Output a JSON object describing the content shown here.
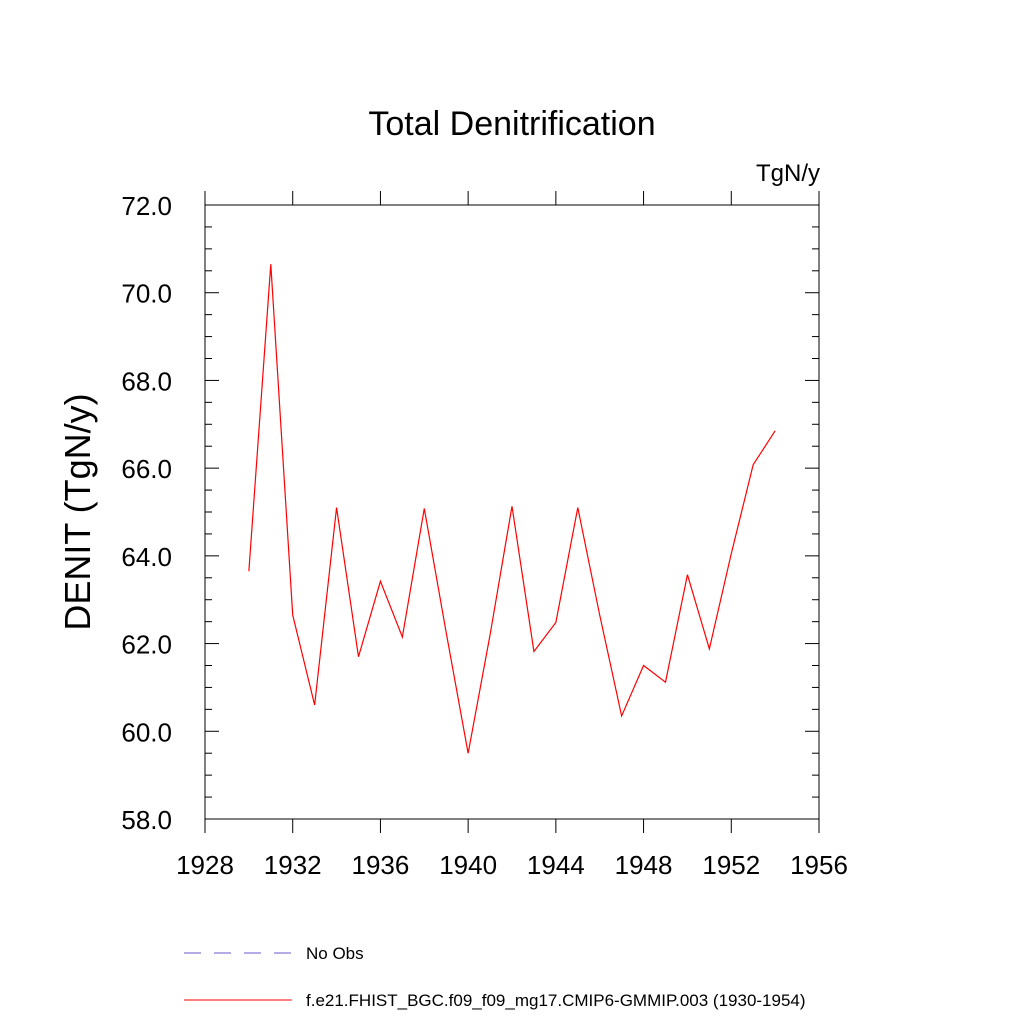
{
  "chart_data": {
    "type": "line",
    "title": "Total Denitrification",
    "units_label": "TgN/y",
    "ylabel": "DENIT  (TgN/y)",
    "xlabel": "",
    "xlim": [
      1928,
      1956
    ],
    "ylim": [
      58.0,
      72.0
    ],
    "x_ticks": [
      1928,
      1932,
      1936,
      1940,
      1944,
      1948,
      1952,
      1956
    ],
    "x_tick_labels": [
      "1928",
      "1932",
      "1936",
      "1940",
      "1944",
      "1948",
      "1952",
      "1956"
    ],
    "y_ticks": [
      58,
      60,
      62,
      64,
      66,
      68,
      70,
      72
    ],
    "y_tick_labels": [
      "58.0",
      "60.0",
      "62.0",
      "64.0",
      "66.0",
      "68.0",
      "70.0",
      "72.0"
    ],
    "grid": false,
    "legend_position": "bottom",
    "series": [
      {
        "name": "f.e21.FHIST_BGC.f09_f09_mg17.CMIP6-GMMIP.003 (1930-1954)",
        "color": "#ff0000",
        "style": "solid",
        "x": [
          1930,
          1931,
          1932,
          1933,
          1934,
          1935,
          1936,
          1937,
          1938,
          1939,
          1940,
          1941,
          1942,
          1943,
          1944,
          1945,
          1946,
          1947,
          1948,
          1949,
          1950,
          1951,
          1952,
          1953,
          1954
        ],
        "values": [
          63.65,
          70.65,
          62.65,
          60.6,
          65.1,
          61.7,
          63.42,
          62.15,
          65.08,
          62.25,
          59.5,
          62.2,
          65.13,
          61.82,
          62.48,
          65.1,
          62.65,
          60.35,
          61.5,
          61.12,
          63.57,
          61.88,
          64.05,
          66.08,
          66.85
        ]
      }
    ],
    "legend": [
      {
        "label": "No Obs",
        "color": "#6a5acd",
        "style": "dashed"
      },
      {
        "label": "f.e21.FHIST_BGC.f09_f09_mg17.CMIP6-GMMIP.003 (1930-1954)",
        "color": "#ff0000",
        "style": "solid"
      }
    ]
  }
}
